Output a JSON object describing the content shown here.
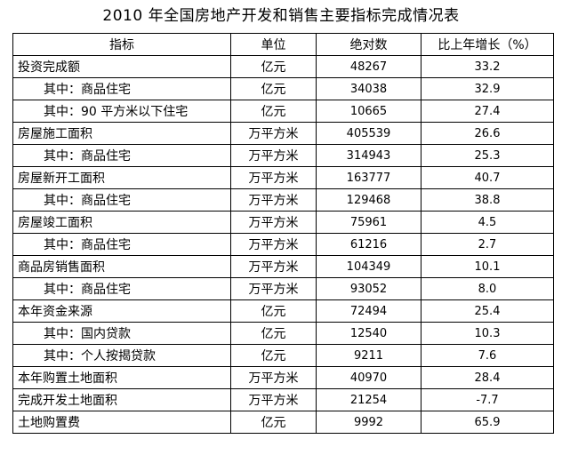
{
  "title": "2010 年全国房地产开发和销售主要指标完成情况表",
  "table": {
    "headers": [
      "指标",
      "单位",
      "绝对数",
      "比上年增长（%）"
    ],
    "rows": [
      {
        "indicator": "投资完成额",
        "unit": "亿元",
        "absolute": "48267",
        "growth": "33.2"
      },
      {
        "indicator": "其中：商品住宅",
        "unit": "亿元",
        "absolute": "34038",
        "growth": "32.9"
      },
      {
        "indicator": "其中：90 平方米以下住宅",
        "unit": "亿元",
        "absolute": "10665",
        "growth": "27.4"
      },
      {
        "indicator": "房屋施工面积",
        "unit": "万平方米",
        "absolute": "405539",
        "growth": "26.6"
      },
      {
        "indicator": "其中：商品住宅",
        "unit": "万平方米",
        "absolute": "314943",
        "growth": "25.3"
      },
      {
        "indicator": "房屋新开工面积",
        "unit": "万平方米",
        "absolute": "163777",
        "growth": "40.7"
      },
      {
        "indicator": "其中：商品住宅",
        "unit": "万平方米",
        "absolute": "129468",
        "growth": "38.8"
      },
      {
        "indicator": "房屋竣工面积",
        "unit": "万平方米",
        "absolute": "75961",
        "growth": "4.5"
      },
      {
        "indicator": "其中：商品住宅",
        "unit": "万平方米",
        "absolute": "61216",
        "growth": "2.7"
      },
      {
        "indicator": "商品房销售面积",
        "unit": "万平方米",
        "absolute": "104349",
        "growth": "10.1"
      },
      {
        "indicator": "其中：商品住宅",
        "unit": "万平方米",
        "absolute": "93052",
        "growth": "8.0"
      },
      {
        "indicator": "本年资金来源",
        "unit": "亿元",
        "absolute": "72494",
        "growth": "25.4"
      },
      {
        "indicator": "其中：国内贷款",
        "unit": "亿元",
        "absolute": "12540",
        "growth": "10.3"
      },
      {
        "indicator": "其中：个人按揭贷款",
        "unit": "亿元",
        "absolute": "9211",
        "growth": "7.6"
      },
      {
        "indicator": "本年购置土地面积",
        "unit": "万平方米",
        "absolute": "40970",
        "growth": "28.4"
      },
      {
        "indicator": "完成开发土地面积",
        "unit": "万平方米",
        "absolute": "21254",
        "growth": "-7.7"
      },
      {
        "indicator": "土地购置费",
        "unit": "亿元",
        "absolute": "9992",
        "growth": "65.9"
      }
    ]
  }
}
